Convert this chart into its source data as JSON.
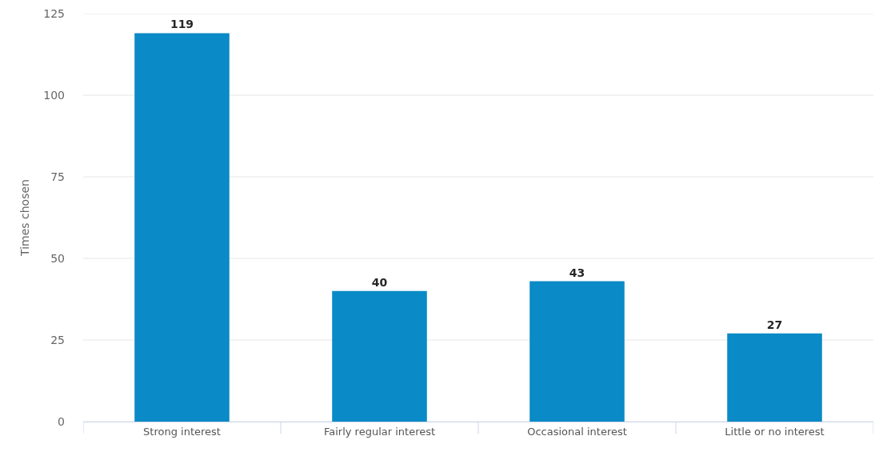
{
  "chart_data": {
    "type": "bar",
    "ylabel": "Times chosen",
    "categories": [
      "Strong interest",
      "Fairly regular interest",
      "Occasional interest",
      "Little or no interest"
    ],
    "values": [
      119,
      40,
      43,
      27
    ],
    "color": "#0a8ac6",
    "ylim": [
      0,
      125
    ],
    "yticks": [
      0,
      25,
      50,
      75,
      100,
      125
    ],
    "grid": "y",
    "data_labels": true
  }
}
